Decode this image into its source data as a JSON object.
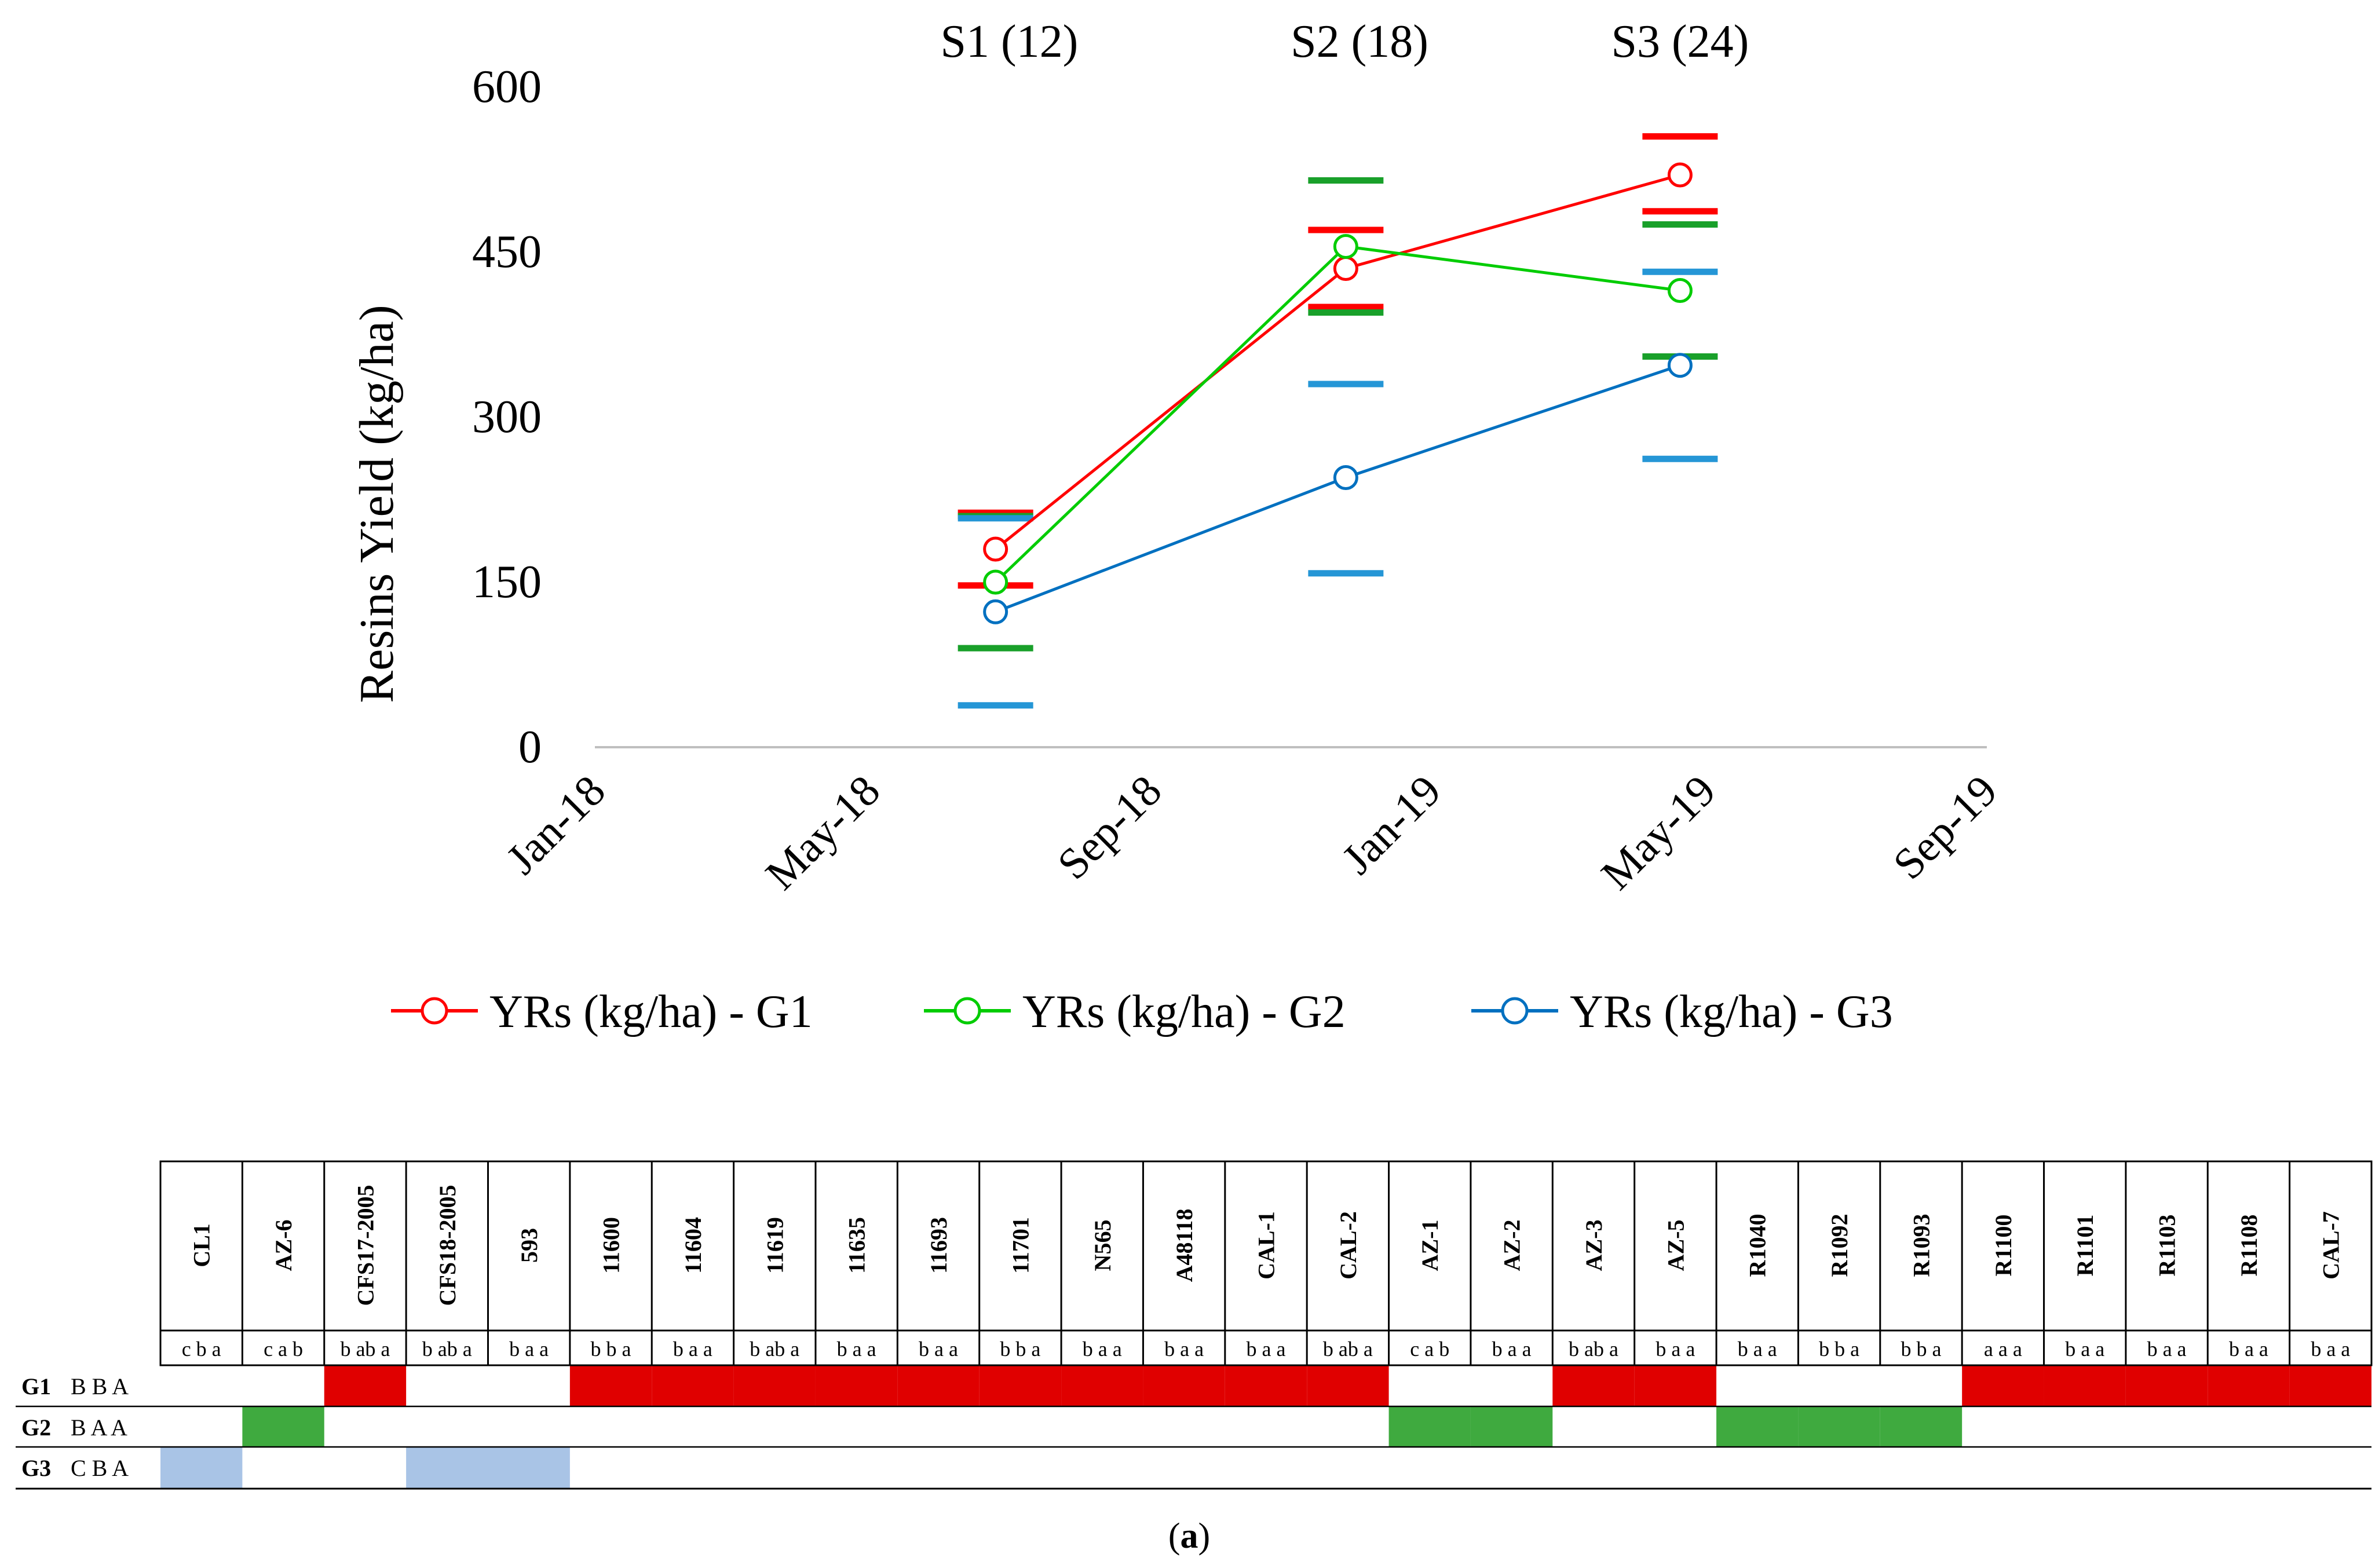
{
  "chart_data": {
    "type": "line",
    "ylabel": "Resins Yield (kg/ha)",
    "xlabel": "",
    "yticks": [
      0,
      150,
      300,
      450,
      600
    ],
    "ylim": [
      0,
      600
    ],
    "xticks": [
      "Jan-18",
      "May-18",
      "Sep-18",
      "Jan-19",
      "May-19",
      "Sep-19"
    ],
    "xtick_dates": [
      "2018-01-01",
      "2018-05-01",
      "2018-09-01",
      "2019-01-01",
      "2019-05-01",
      "2019-09-01"
    ],
    "xlim": [
      "2018-01-01",
      "2019-09-01"
    ],
    "grid": false,
    "legend_position": "bottom",
    "sampling_labels": [
      {
        "text": "S1 (12)",
        "date": "2018-07-01"
      },
      {
        "text": "S2 (18)",
        "date": "2018-12-01"
      },
      {
        "text": "S3 (24)",
        "date": "2019-04-20"
      }
    ],
    "series": [
      {
        "name": "YRs (kg/ha) - G1",
        "color": "#ff0000",
        "x": [
          "2018-06-25",
          "2018-11-25",
          "2019-04-20"
        ],
        "y": [
          180,
          435,
          520
        ],
        "error_lower": [
          147,
          400,
          487
        ],
        "error_upper": [
          213,
          470,
          555
        ]
      },
      {
        "name": "YRs (kg/ha) - G2",
        "color": "#00cc00",
        "bar_color": "#19a02a",
        "x": [
          "2018-06-25",
          "2018-11-25",
          "2019-04-20"
        ],
        "y": [
          150,
          455,
          415
        ],
        "error_lower": [
          90,
          395,
          355
        ],
        "error_upper": [
          210,
          515,
          475
        ]
      },
      {
        "name": "YRs (kg/ha) - G3",
        "color": "#0070c0",
        "bar_color": "#2596d6",
        "x": [
          "2018-06-25",
          "2018-11-25",
          "2019-04-20"
        ],
        "y": [
          123,
          245,
          347
        ],
        "error_lower": [
          38,
          158,
          262
        ],
        "error_upper": [
          208,
          330,
          432
        ]
      }
    ]
  },
  "table": {
    "cultivars": [
      {
        "name": "CL1",
        "letters": "c b a"
      },
      {
        "name": "AZ-6",
        "letters": "c a b"
      },
      {
        "name": "CFS17-2005",
        "letters": "b ab a"
      },
      {
        "name": "CFS18-2005",
        "letters": "b ab a"
      },
      {
        "name": "593",
        "letters": "b a a"
      },
      {
        "name": "11600",
        "letters": "b b a"
      },
      {
        "name": "11604",
        "letters": "b a a"
      },
      {
        "name": "11619",
        "letters": "b ab a"
      },
      {
        "name": "11635",
        "letters": "b a a"
      },
      {
        "name": "11693",
        "letters": "b a a"
      },
      {
        "name": "11701",
        "letters": "b b a"
      },
      {
        "name": "N565",
        "letters": "b a a"
      },
      {
        "name": "A48118",
        "letters": "b a a"
      },
      {
        "name": "CAL-1",
        "letters": "b a a"
      },
      {
        "name": "CAL-2",
        "letters": "b ab a"
      },
      {
        "name": "AZ-1",
        "letters": "c a b"
      },
      {
        "name": "AZ-2",
        "letters": "b a a"
      },
      {
        "name": "AZ-3",
        "letters": "b ab a"
      },
      {
        "name": "AZ-5",
        "letters": "b a a"
      },
      {
        "name": "R1040",
        "letters": "b a a"
      },
      {
        "name": "R1092",
        "letters": "b b a"
      },
      {
        "name": "R1093",
        "letters": "b b a"
      },
      {
        "name": "R1100",
        "letters": "a a a"
      },
      {
        "name": "R1101",
        "letters": "b a a"
      },
      {
        "name": "R1103",
        "letters": "b a a"
      },
      {
        "name": "R1108",
        "letters": "b a a"
      },
      {
        "name": "CAL-7",
        "letters": "b a a"
      }
    ],
    "groups": [
      {
        "name": "G1",
        "letters": "B B A",
        "color": "#e00000",
        "members": [
          2,
          5,
          6,
          7,
          8,
          9,
          10,
          11,
          12,
          13,
          14,
          17,
          18,
          22,
          23,
          24,
          25,
          26
        ]
      },
      {
        "name": "G2",
        "letters": "B A A",
        "color": "#3faa3f",
        "members": [
          1,
          15,
          16,
          19,
          20,
          21
        ]
      },
      {
        "name": "G3",
        "letters": "C B A",
        "color": "#a9c4e6",
        "members": [
          0,
          3,
          4
        ]
      }
    ]
  },
  "caption": {
    "open": "(",
    "letter": "a",
    "close": ")"
  }
}
